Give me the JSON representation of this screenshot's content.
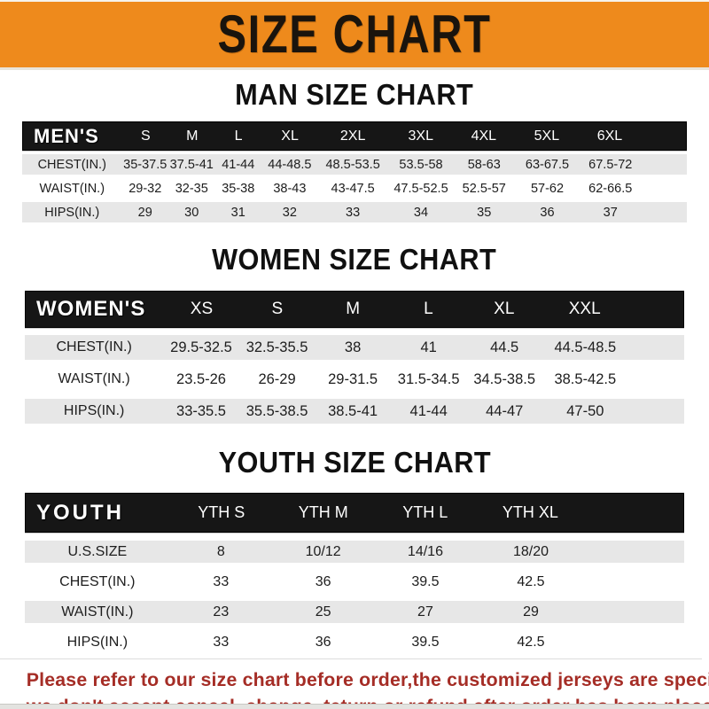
{
  "banner": {
    "title": "SIZE CHART"
  },
  "colors": {
    "banner_bg": "#ee8a1c",
    "header_bar_bg": "#161616",
    "row_alt_bg": "#e7e7e7",
    "note_red": "#a52d26"
  },
  "sections": [
    {
      "id": "men",
      "title": "MAN SIZE CHART",
      "table": {
        "label": "MEN'S",
        "columns": [
          "S",
          "M",
          "L",
          "XL",
          "2XL",
          "3XL",
          "4XL",
          "5XL",
          "6XL"
        ],
        "rows": [
          {
            "label": "CHEST(IN.)",
            "values": [
              "35-37.5",
              "37.5-41",
              "41-44",
              "44-48.5",
              "48.5-53.5",
              "53.5-58",
              "58-63",
              "63-67.5",
              "67.5-72"
            ]
          },
          {
            "label": "WAIST(IN.)",
            "values": [
              "29-32",
              "32-35",
              "35-38",
              "38-43",
              "43-47.5",
              "47.5-52.5",
              "52.5-57",
              "57-62",
              "62-66.5"
            ]
          },
          {
            "label": "HIPS(IN.)",
            "values": [
              "29",
              "30",
              "31",
              "32",
              "33",
              "34",
              "35",
              "36",
              "37"
            ]
          }
        ]
      }
    },
    {
      "id": "women",
      "title": "WOMEN SIZE CHART",
      "table": {
        "label": "WOMEN'S",
        "columns": [
          "XS",
          "S",
          "M",
          "L",
          "XL",
          "XXL"
        ],
        "rows": [
          {
            "label": "CHEST(IN.)",
            "values": [
              "29.5-32.5",
              "32.5-35.5",
              "38",
              "41",
              "44.5",
              "44.5-48.5"
            ]
          },
          {
            "label": "WAIST(IN.)",
            "values": [
              "23.5-26",
              "26-29",
              "29-31.5",
              "31.5-34.5",
              "34.5-38.5",
              "38.5-42.5"
            ]
          },
          {
            "label": "HIPS(IN.)",
            "values": [
              "33-35.5",
              "35.5-38.5",
              "38.5-41",
              "41-44",
              "44-47",
              "47-50"
            ]
          }
        ]
      }
    },
    {
      "id": "youth",
      "title": "YOUTH SIZE CHART",
      "table": {
        "label": "YOUTH",
        "columns": [
          "YTH S",
          "YTH M",
          "YTH L",
          "YTH XL"
        ],
        "rows": [
          {
            "label": "U.S.SIZE",
            "values": [
              "8",
              "10/12",
              "14/16",
              "18/20"
            ]
          },
          {
            "label": "CHEST(IN.)",
            "values": [
              "33",
              "36",
              "39.5",
              "42.5"
            ]
          },
          {
            "label": "WAIST(IN.)",
            "values": [
              "23",
              "25",
              "27",
              "29"
            ]
          },
          {
            "label": "HIPS(IN.)",
            "values": [
              "33",
              "36",
              "39.5",
              "42.5"
            ]
          }
        ]
      }
    }
  ],
  "footnote": {
    "line1": "Please refer to our size chart before order,the customized jerseys are special products,",
    "line2": "we don't accept cancel, change, teturn or refund after order has been placed!"
  }
}
